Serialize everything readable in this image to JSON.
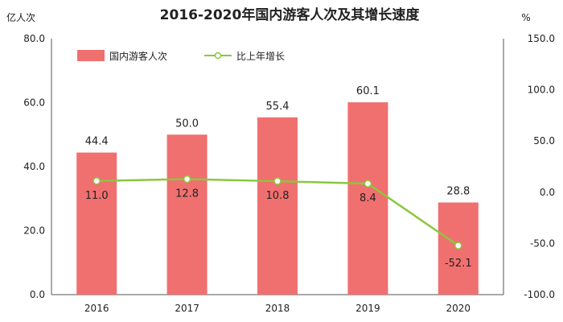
{
  "chart_data": {
    "type": "bar",
    "title": "2016-2020年国内游客人次及其增长速度",
    "ylabel_left": "亿人次",
    "ylabel_right": "%",
    "categories": [
      "2016",
      "2017",
      "2018",
      "2019",
      "2020"
    ],
    "series": [
      {
        "name": "国内游客人次",
        "type": "bar",
        "axis": "left",
        "values": [
          44.4,
          50.0,
          55.4,
          60.1,
          28.8
        ],
        "labels": [
          "44.4",
          "50.0",
          "55.4",
          "60.1",
          "28.8"
        ],
        "color": "#f07070"
      },
      {
        "name": "比上年增长",
        "type": "line",
        "axis": "right",
        "values": [
          11.0,
          12.8,
          10.8,
          8.4,
          -52.1
        ],
        "labels": [
          "11.0",
          "12.8",
          "10.8",
          "8.4",
          "-52.1"
        ],
        "color": "#8cc63f"
      }
    ],
    "y_left": {
      "range": [
        0,
        80
      ],
      "ticks": [
        0,
        20,
        40,
        60,
        80
      ],
      "tick_labels": [
        "0.0",
        "20.0",
        "40.0",
        "60.0",
        "80.0"
      ]
    },
    "y_right": {
      "range": [
        -100,
        150
      ],
      "ticks": [
        -100,
        -50,
        0,
        50,
        100,
        150
      ],
      "tick_labels": [
        "-100.0",
        "-50.0",
        "0.0",
        "50.0",
        "100.0",
        "150.0"
      ]
    },
    "legend_position": "top-left",
    "grid": false
  }
}
